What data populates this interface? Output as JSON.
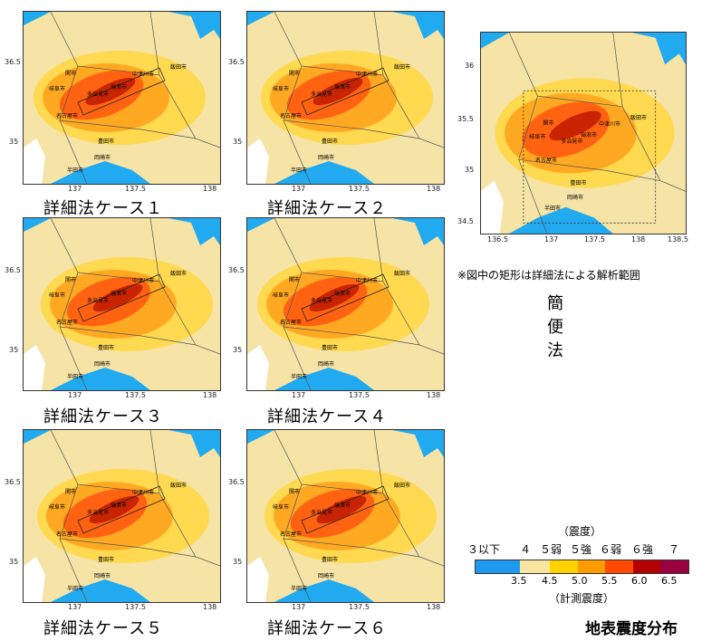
{
  "maps": [
    {
      "id": "case1",
      "caption": "詳細法ケース１",
      "lat_ticks": [
        "36.5",
        "35"
      ],
      "lon_ticks": [
        "137",
        "137.5",
        "138"
      ]
    },
    {
      "id": "case2",
      "caption": "詳細法ケース２",
      "lat_ticks": [
        "36.5",
        "35"
      ],
      "lon_ticks": [
        "137",
        "137.5",
        "138"
      ]
    },
    {
      "id": "case3",
      "caption": "詳細法ケース３",
      "lat_ticks": [
        "36.5",
        "35"
      ],
      "lon_ticks": [
        "137",
        "137.5",
        "138"
      ]
    },
    {
      "id": "case4",
      "caption": "詳細法ケース４",
      "lat_ticks": [
        "36.5",
        "35"
      ],
      "lon_ticks": [
        "137",
        "137.5",
        "138"
      ]
    },
    {
      "id": "case5",
      "caption": "詳細法ケース５",
      "lat_ticks": [
        "36.5",
        "35"
      ],
      "lon_ticks": [
        "137",
        "137.5",
        "138"
      ]
    },
    {
      "id": "case6",
      "caption": "詳細法ケース６",
      "lat_ticks": [
        "36.5",
        "35"
      ],
      "lon_ticks": [
        "137",
        "137.5",
        "138"
      ]
    }
  ],
  "simple_map": {
    "caption": "簡便法",
    "note": "※図中の矩形は詳細法による解析範囲",
    "lat_ticks": [
      "36",
      "35.5",
      "35",
      "34.5"
    ],
    "lon_ticks": [
      "136.5",
      "137",
      "137.5",
      "138",
      "138.5"
    ]
  },
  "city_labels": [
    "関市",
    "岐阜市",
    "多治見市",
    "瑞浪市",
    "中津川市",
    "飯田市",
    "名古屋市",
    "豊田市",
    "岡崎市",
    "半田市"
  ],
  "legend": {
    "header": "（震度）",
    "intensity_labels": [
      "３以下",
      "４",
      "５弱",
      "５強",
      "６弱",
      "６強",
      "７"
    ],
    "scale_labels": [
      "3.5",
      "4.5",
      "5.0",
      "5.5",
      "6.0",
      "6.5"
    ],
    "footer": "（計測震度）",
    "colors": [
      "#1e9bf0",
      "#f8e6a0",
      "#ffd200",
      "#ff9c00",
      "#ff4a00",
      "#b40000",
      "#9a0040"
    ]
  },
  "title": "地表震度分布",
  "colors": {
    "sea": "#22aaf0",
    "land_low": "#f6e3a6",
    "intensity_5_low": "#ffd84a",
    "intensity_5_high": "#ffa620",
    "intensity_6_low": "#ff5a10",
    "intensity_6_high": "#c01a00"
  }
}
